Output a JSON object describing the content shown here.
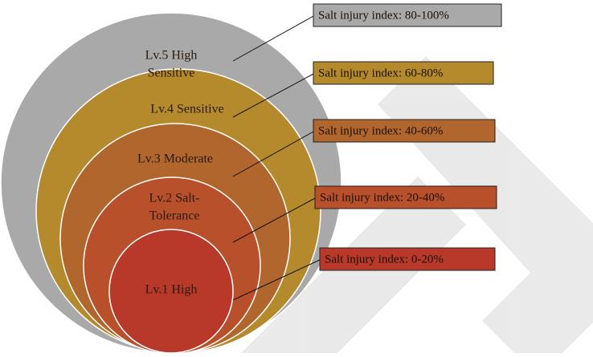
{
  "levels": [
    {
      "label_lines": [
        "Lv.5 High",
        "Sensitive"
      ],
      "index": "Salt injury index: 80-100%",
      "color": "#a9a9a9"
    },
    {
      "label_lines": [
        "Lv.4 Sensitive"
      ],
      "index": "Salt injury index: 60-80%",
      "color": "#b58a2c"
    },
    {
      "label_lines": [
        "Lv.3 Moderate"
      ],
      "index": "Salt injury index: 40-60%",
      "color": "#b0662c"
    },
    {
      "label_lines": [
        "Lv.2 Salt-",
        "Tolerance"
      ],
      "index": "Salt injury index: 20-40%",
      "color": "#b8502b"
    },
    {
      "label_lines": [
        "Lv.1 High"
      ],
      "index": "Salt injury index: 0-20%",
      "color": "#b8392a"
    }
  ]
}
